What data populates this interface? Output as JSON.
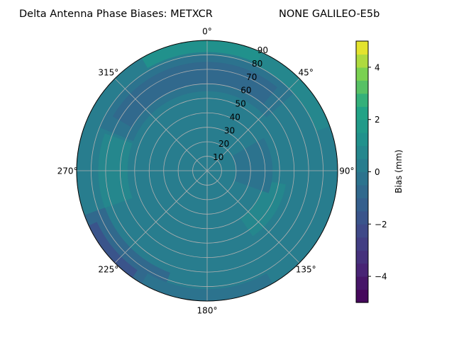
{
  "figure": {
    "title_left": "Delta Antenna Phase Biases: METXCR",
    "title_right": "NONE GALILEO-E5b"
  },
  "chart_data": {
    "type": "polar-contour",
    "title": "Delta Antenna Phase Biases: METXCR",
    "subtitle": "NONE GALILEO-E5b",
    "theta_direction": "clockwise",
    "theta_zero": "north",
    "theta_ticks": [
      "0°",
      "45°",
      "90°",
      "135°",
      "180°",
      "225°",
      "270°",
      "315°"
    ],
    "theta_tick_values": [
      0,
      45,
      90,
      135,
      180,
      225,
      270,
      315
    ],
    "r_range": [
      0,
      90
    ],
    "r_ticks": [
      10,
      20,
      30,
      40,
      50,
      60,
      70,
      80,
      90
    ],
    "r_tick_labels": [
      "10",
      "20",
      "30",
      "40",
      "50",
      "60",
      "70",
      "80",
      "90"
    ],
    "grid": true,
    "colorbar": {
      "label": "Bias (mm)",
      "range": [
        -5,
        5
      ],
      "ticks": [
        -4,
        -2,
        0,
        2,
        4
      ],
      "tick_labels": [
        "−4",
        "−2",
        "0",
        "2",
        "4"
      ],
      "levels": [
        -5,
        -4.5,
        -4,
        -3.5,
        -3,
        -2.5,
        -2,
        -1.5,
        -1,
        -0.5,
        0,
        0.5,
        1,
        1.5,
        2,
        2.5,
        3,
        3.5,
        4,
        4.5,
        5
      ],
      "colormap": "viridis"
    },
    "regions": [
      {
        "theta": [
          0,
          360
        ],
        "r": [
          0,
          90
        ],
        "bias": 0.25
      },
      {
        "theta": [
          292,
          48
        ],
        "r": [
          55,
          80
        ],
        "bias": -0.25
      },
      {
        "theta": [
          300,
          40
        ],
        "r": [
          60,
          75
        ],
        "bias": -0.75
      },
      {
        "theta": [
          330,
          25
        ],
        "r": [
          82,
          90
        ],
        "bias": 1.25
      },
      {
        "theta": [
          25,
          70
        ],
        "r": [
          80,
          90
        ],
        "bias": 0.75
      },
      {
        "theta": [
          250,
          290
        ],
        "r": [
          55,
          75
        ],
        "bias": 0.75
      },
      {
        "theta": [
          200,
          250
        ],
        "r": [
          75,
          90
        ],
        "bias": -0.75
      },
      {
        "theta": [
          215,
          245
        ],
        "r": [
          84,
          90
        ],
        "bias": -1.75
      },
      {
        "theta": [
          100,
          145
        ],
        "r": [
          40,
          55
        ],
        "bias": 0.75
      },
      {
        "theta": [
          60,
          110
        ],
        "r": [
          20,
          45
        ],
        "bias": -0.25
      },
      {
        "theta": [
          150,
          210
        ],
        "r": [
          82,
          90
        ],
        "bias": -0.25
      }
    ]
  }
}
